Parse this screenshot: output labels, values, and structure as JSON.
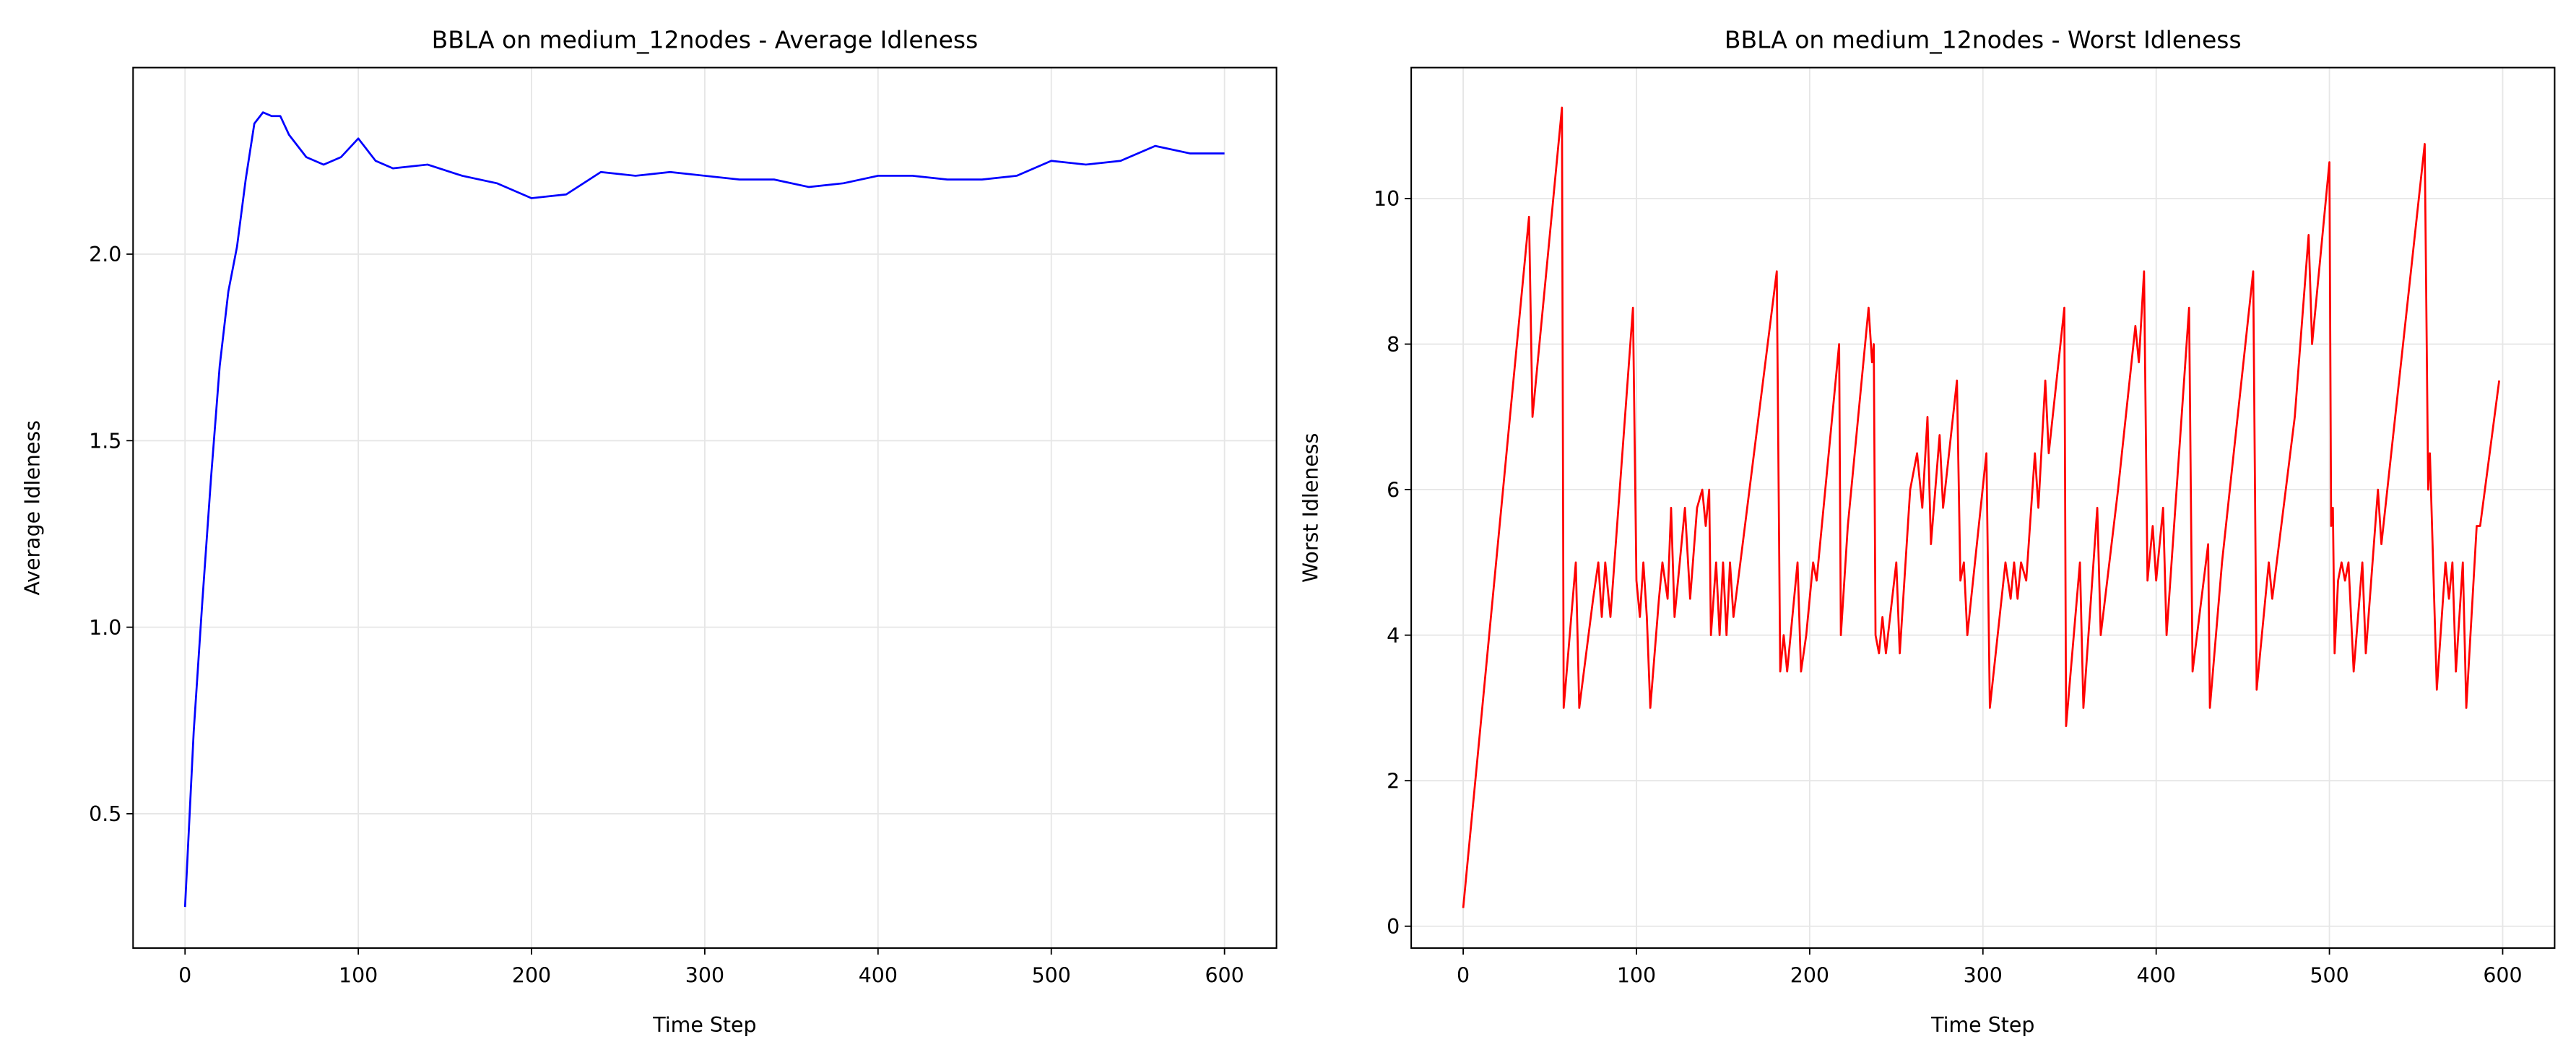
{
  "chart_data": [
    {
      "type": "line",
      "title": "BBLA on medium_12nodes - Average Idleness",
      "xlabel": "Time Step",
      "ylabel": "Average Idleness",
      "color": "#0000ff",
      "grid": true,
      "xlim": [
        -30,
        630
      ],
      "ylim": [
        0.14,
        2.5
      ],
      "xticks": [
        0,
        100,
        200,
        300,
        400,
        500,
        600
      ],
      "yticks": [
        0.5,
        {
          "value": 1,
          "label": "1.0"
        },
        1.5,
        {
          "value": 2,
          "label": "2.0"
        }
      ],
      "x": [
        0,
        5,
        10,
        15,
        20,
        25,
        30,
        35,
        40,
        45,
        50,
        55,
        60,
        70,
        80,
        90,
        100,
        110,
        120,
        140,
        160,
        180,
        200,
        220,
        240,
        260,
        280,
        300,
        320,
        340,
        360,
        380,
        400,
        420,
        440,
        460,
        480,
        500,
        520,
        540,
        560,
        580,
        600
      ],
      "values": [
        0.25,
        0.72,
        1.07,
        1.4,
        1.7,
        1.9,
        2.02,
        2.2,
        2.35,
        2.38,
        2.37,
        2.37,
        2.32,
        2.26,
        2.24,
        2.26,
        2.31,
        2.25,
        2.23,
        2.24,
        2.21,
        2.19,
        2.15,
        2.16,
        2.22,
        2.21,
        2.22,
        2.21,
        2.2,
        2.2,
        2.18,
        2.19,
        2.21,
        2.21,
        2.2,
        2.2,
        2.21,
        2.25,
        2.24,
        2.25,
        2.29,
        2.27,
        2.27
      ]
    },
    {
      "type": "line",
      "title": "BBLA on medium_12nodes - Worst Idleness",
      "xlabel": "Time Step",
      "ylabel": "Worst Idleness",
      "color": "#ff0000",
      "grid": true,
      "xlim": [
        -30,
        630
      ],
      "ylim": [
        -0.3,
        11.8
      ],
      "xticks": [
        0,
        100,
        200,
        300,
        400,
        500,
        600
      ],
      "yticks": [
        0,
        2,
        4,
        6,
        8,
        10
      ],
      "x": [
        0,
        38,
        40,
        57,
        58,
        65,
        67,
        75,
        78,
        80,
        82,
        85,
        98,
        100,
        102,
        104,
        106,
        108,
        113,
        115,
        118,
        120,
        122,
        128,
        131,
        135,
        138,
        140,
        142,
        143,
        146,
        148,
        150,
        152,
        154,
        156,
        160,
        181,
        183,
        185,
        187,
        193,
        195,
        198,
        202,
        204,
        217,
        218,
        222,
        234,
        236,
        237,
        238,
        240,
        242,
        244,
        250,
        252,
        258,
        262,
        265,
        268,
        270,
        275,
        277,
        285,
        287,
        289,
        291,
        302,
        304,
        313,
        316,
        318,
        320,
        322,
        325,
        330,
        332,
        336,
        338,
        347,
        348,
        356,
        358,
        366,
        368,
        378,
        388,
        390,
        393,
        395,
        398,
        400,
        404,
        406,
        419,
        421,
        430,
        431,
        438,
        456,
        458,
        460,
        465,
        467,
        480,
        488,
        490,
        500,
        501,
        502,
        503,
        505,
        507,
        509,
        511,
        514,
        519,
        521,
        528,
        530,
        555,
        557,
        558,
        562,
        567,
        569,
        571,
        573,
        577,
        579,
        585,
        587,
        598
      ],
      "values": [
        0.25,
        9.75,
        7,
        11.25,
        3,
        5,
        3,
        4.5,
        5,
        4.25,
        5,
        4.25,
        8.5,
        4.75,
        4.25,
        5,
        4.25,
        3,
        4.5,
        5,
        4.5,
        5.75,
        4.25,
        5.75,
        4.5,
        5.75,
        6,
        5.5,
        6,
        4,
        5,
        4,
        5,
        4,
        5,
        4.25,
        5,
        9,
        3.5,
        4,
        3.5,
        5,
        3.5,
        4,
        5,
        4.75,
        8,
        4,
        5.5,
        8.5,
        7.75,
        8,
        4,
        3.75,
        4.25,
        3.75,
        5,
        3.75,
        6,
        6.5,
        5.75,
        7,
        5.25,
        6.75,
        5.75,
        7.5,
        4.75,
        5,
        4,
        6.5,
        3,
        5,
        4.5,
        5,
        4.5,
        5,
        4.75,
        6.5,
        5.75,
        7.5,
        6.5,
        8.5,
        2.75,
        5,
        3,
        5.75,
        4,
        6,
        8.25,
        7.75,
        9,
        4.75,
        5.5,
        4.75,
        5.75,
        4,
        8.5,
        3.5,
        5.25,
        3,
        5,
        9,
        3.25,
        3.75,
        5,
        4.5,
        7,
        9.5,
        8,
        10.5,
        5.5,
        5.75,
        3.75,
        4.75,
        5,
        4.75,
        5,
        3.5,
        5,
        3.75,
        6,
        5.25,
        10.75,
        6,
        6.5,
        3.25,
        5,
        4.5,
        5,
        3.5,
        5,
        3,
        5.5,
        5.5,
        7.5
      ]
    }
  ]
}
